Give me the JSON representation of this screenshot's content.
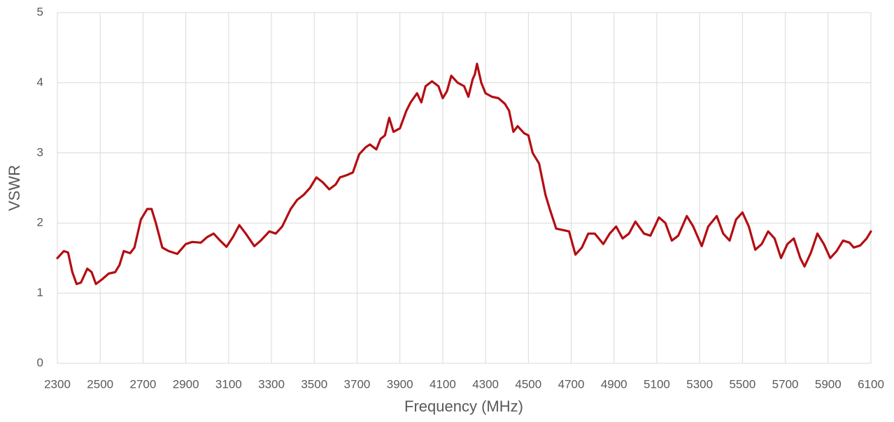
{
  "chart_data": {
    "type": "line",
    "xlabel": "Frequency (MHz)",
    "ylabel": "VSWR",
    "x": [
      2300,
      2330,
      2350,
      2370,
      2390,
      2410,
      2440,
      2460,
      2480,
      2510,
      2540,
      2570,
      2590,
      2610,
      2640,
      2660,
      2690,
      2720,
      2740,
      2760,
      2790,
      2820,
      2860,
      2900,
      2930,
      2970,
      3000,
      3030,
      3060,
      3090,
      3120,
      3150,
      3180,
      3220,
      3250,
      3290,
      3320,
      3350,
      3390,
      3420,
      3450,
      3480,
      3510,
      3540,
      3570,
      3600,
      3620,
      3650,
      3680,
      3710,
      3740,
      3760,
      3790,
      3810,
      3830,
      3850,
      3870,
      3900,
      3930,
      3950,
      3980,
      4000,
      4020,
      4050,
      4080,
      4100,
      4120,
      4140,
      4170,
      4200,
      4220,
      4240,
      4250,
      4260,
      4280,
      4300,
      4330,
      4360,
      4390,
      4410,
      4430,
      4450,
      4480,
      4500,
      4520,
      4550,
      4580,
      4600,
      4630,
      4660,
      4690,
      4720,
      4750,
      4780,
      4810,
      4850,
      4880,
      4910,
      4940,
      4970,
      5000,
      5040,
      5070,
      5110,
      5140,
      5170,
      5200,
      5240,
      5270,
      5310,
      5340,
      5380,
      5410,
      5440,
      5470,
      5500,
      5530,
      5560,
      5590,
      5620,
      5650,
      5680,
      5710,
      5740,
      5770,
      5790,
      5820,
      5850,
      5880,
      5910,
      5940,
      5970,
      6000,
      6020,
      6050,
      6080,
      6100
    ],
    "values": [
      1.5,
      1.6,
      1.58,
      1.3,
      1.13,
      1.15,
      1.35,
      1.3,
      1.13,
      1.2,
      1.28,
      1.3,
      1.4,
      1.6,
      1.57,
      1.65,
      2.05,
      2.2,
      2.2,
      2.0,
      1.65,
      1.6,
      1.56,
      1.7,
      1.73,
      1.72,
      1.8,
      1.85,
      1.75,
      1.66,
      1.8,
      1.97,
      1.85,
      1.67,
      1.75,
      1.88,
      1.85,
      1.95,
      2.2,
      2.33,
      2.4,
      2.5,
      2.65,
      2.58,
      2.48,
      2.55,
      2.65,
      2.68,
      2.72,
      2.98,
      3.08,
      3.12,
      3.05,
      3.2,
      3.25,
      3.5,
      3.3,
      3.35,
      3.6,
      3.72,
      3.85,
      3.72,
      3.95,
      4.02,
      3.95,
      3.78,
      3.88,
      4.1,
      4.0,
      3.95,
      3.8,
      4.05,
      4.12,
      4.27,
      4.0,
      3.85,
      3.8,
      3.78,
      3.7,
      3.6,
      3.3,
      3.38,
      3.28,
      3.25,
      3.0,
      2.85,
      2.4,
      2.2,
      1.92,
      1.9,
      1.88,
      1.55,
      1.65,
      1.85,
      1.85,
      1.7,
      1.85,
      1.95,
      1.78,
      1.85,
      2.02,
      1.85,
      1.82,
      2.08,
      2.0,
      1.75,
      1.82,
      2.1,
      1.95,
      1.67,
      1.95,
      2.1,
      1.85,
      1.75,
      2.05,
      2.15,
      1.95,
      1.62,
      1.7,
      1.88,
      1.78,
      1.5,
      1.7,
      1.78,
      1.5,
      1.38,
      1.58,
      1.85,
      1.7,
      1.5,
      1.6,
      1.75,
      1.72,
      1.65,
      1.68,
      1.78,
      1.88
    ],
    "color": "#b40d12",
    "xlim": [
      2300,
      6100
    ],
    "ylim": [
      0,
      5
    ],
    "xticks": [
      2300,
      2500,
      2700,
      2900,
      3100,
      3300,
      3500,
      3700,
      3900,
      4100,
      4300,
      4500,
      4700,
      4900,
      5100,
      5300,
      5500,
      5700,
      5900,
      6100
    ],
    "yticks": [
      0,
      1,
      2,
      3,
      4,
      5
    ],
    "grid": true
  }
}
